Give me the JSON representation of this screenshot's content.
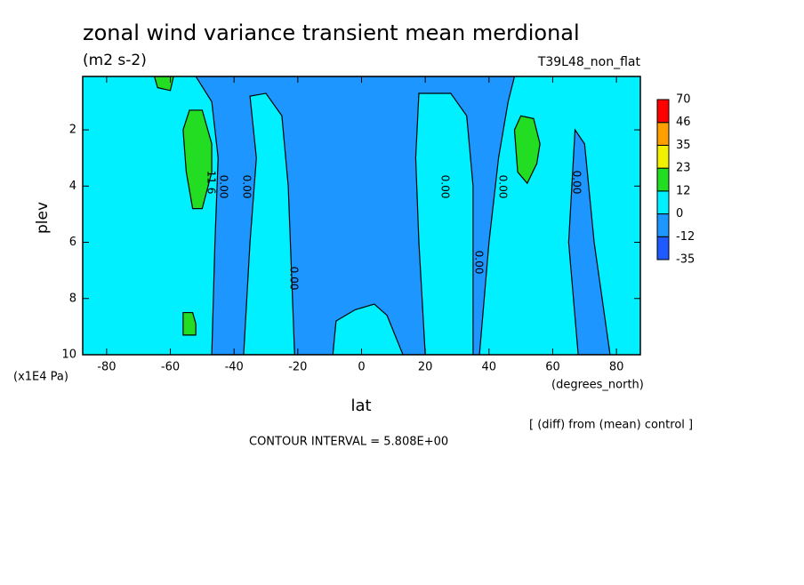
{
  "chart_data": {
    "type": "contour",
    "title": "zonal wind variance transient mean merdional",
    "subtitle": "(m2 s-2)",
    "run_label": "T39L48_non_flat",
    "x_label": "lat",
    "x_unit": "(degrees_north)",
    "y_label": "plev",
    "y_unit": "(x1E4 Pa)",
    "note": "[ (diff) from (mean) control ]",
    "contour_interval": "CONTOUR INTERVAL = 5.808E+00",
    "xlim": [
      -87.5,
      87.5
    ],
    "xticks": [
      -80,
      -60,
      -40,
      -20,
      0,
      20,
      40,
      60,
      80
    ],
    "ylim": [
      10,
      0.1
    ],
    "yticks": [
      2,
      4,
      6,
      8,
      10
    ],
    "colorbar": {
      "levels": [
        -35,
        -12,
        0,
        12,
        23,
        35,
        46,
        70
      ],
      "colors": [
        "#1e5aff",
        "#1e96ff",
        "#00f0ff",
        "#22dd22",
        "#f0f000",
        "#ffa000",
        "#ff0000"
      ]
    },
    "background_band": 2,
    "regions": [
      {
        "band": 1,
        "lat": [
          -47,
          -46,
          -45,
          -47,
          -52,
          48,
          46,
          43,
          40,
          37
        ],
        "plev": [
          10,
          6,
          3,
          1,
          0.1,
          0.1,
          1,
          3,
          6,
          10
        ]
      },
      {
        "band": 2,
        "lat": [
          -37,
          -35,
          -33,
          -35,
          -30,
          -25,
          -23,
          -22,
          -21
        ],
        "plev": [
          10,
          6,
          3,
          0.8,
          0.7,
          1.5,
          4,
          7,
          10
        ]
      },
      {
        "band": 2,
        "lat": [
          20,
          18,
          17,
          18,
          28,
          33,
          35,
          35
        ],
        "plev": [
          10,
          6,
          3,
          0.7,
          0.7,
          1.5,
          4,
          10
        ]
      },
      {
        "band": 2,
        "lat": [
          -9,
          -8,
          -2,
          4,
          8,
          13
        ],
        "plev": [
          10,
          8.8,
          8.4,
          8.2,
          8.6,
          10
        ]
      },
      {
        "band": 1,
        "lat": [
          68,
          65,
          67,
          70,
          73,
          78
        ],
        "plev": [
          10,
          6,
          2,
          2.5,
          6,
          10
        ]
      },
      {
        "band": 3,
        "lat": [
          -56,
          -54,
          -50,
          -47,
          -47,
          -50,
          -53,
          -55
        ],
        "plev": [
          2,
          1.3,
          1.3,
          2.5,
          3.5,
          4.8,
          4.8,
          3.5
        ]
      },
      {
        "band": 3,
        "lat": [
          48,
          50,
          54,
          56,
          55,
          52,
          49
        ],
        "plev": [
          2,
          1.5,
          1.6,
          2.5,
          3.2,
          3.9,
          3.5
        ]
      },
      {
        "band": 3,
        "lat": [
          -56,
          -53,
          -52,
          -52,
          -56
        ],
        "plev": [
          8.5,
          8.5,
          8.9,
          9.3,
          9.3
        ]
      },
      {
        "band": 3,
        "lat": [
          -65,
          -59,
          -60,
          -64
        ],
        "plev": [
          0.1,
          0.1,
          0.6,
          0.5
        ]
      }
    ],
    "contour_labels": [
      "11.6",
      "0.00",
      "0.00",
      "0.00",
      "0.00",
      "0.00",
      "0.00",
      "0.00"
    ]
  }
}
